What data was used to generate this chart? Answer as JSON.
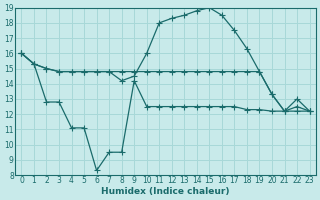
{
  "xlabel": "Humidex (Indice chaleur)",
  "bg_color": "#c8eaea",
  "line_color": "#1a6b6b",
  "grid_color": "#a8d8d8",
  "xlim": [
    -0.5,
    23.5
  ],
  "ylim": [
    8,
    19
  ],
  "xticks": [
    0,
    1,
    2,
    3,
    4,
    5,
    6,
    7,
    8,
    9,
    10,
    11,
    12,
    13,
    14,
    15,
    16,
    17,
    18,
    19,
    20,
    21,
    22,
    23
  ],
  "yticks": [
    8,
    9,
    10,
    11,
    12,
    13,
    14,
    15,
    16,
    17,
    18,
    19
  ],
  "line1_x": [
    0,
    1,
    2,
    3,
    4,
    5,
    6,
    7,
    8,
    9,
    10,
    11,
    12,
    13,
    14,
    15,
    16,
    17,
    18,
    19,
    20,
    21,
    22,
    23
  ],
  "line1_y": [
    16.0,
    15.3,
    15.0,
    14.8,
    14.8,
    14.8,
    14.8,
    14.8,
    14.8,
    14.8,
    14.8,
    14.8,
    14.8,
    14.8,
    14.8,
    14.8,
    14.8,
    14.8,
    14.8,
    14.8,
    13.3,
    12.2,
    12.2,
    12.2
  ],
  "line2_x": [
    0,
    1,
    2,
    3,
    4,
    5,
    6,
    7,
    8,
    9,
    10,
    11,
    12,
    13,
    14,
    15,
    16,
    17,
    18,
    19,
    20,
    21,
    22,
    23
  ],
  "line2_y": [
    16.0,
    15.3,
    15.0,
    14.8,
    14.8,
    14.8,
    14.8,
    14.8,
    14.2,
    14.5,
    16.0,
    18.0,
    18.3,
    18.5,
    18.8,
    19.0,
    18.5,
    17.5,
    16.3,
    14.8,
    13.3,
    12.2,
    13.0,
    12.2
  ],
  "line3_x": [
    0,
    1,
    2,
    3,
    4,
    5,
    6,
    7,
    8,
    9,
    10,
    11,
    12,
    13,
    14,
    15,
    16,
    17,
    18,
    19,
    20,
    21,
    22,
    23
  ],
  "line3_y": [
    16.0,
    15.3,
    12.8,
    12.8,
    11.1,
    11.1,
    8.3,
    9.5,
    9.5,
    14.2,
    12.5,
    12.5,
    12.5,
    12.5,
    12.5,
    12.5,
    12.5,
    12.5,
    12.3,
    12.3,
    12.2,
    12.2,
    12.5,
    12.2
  ]
}
